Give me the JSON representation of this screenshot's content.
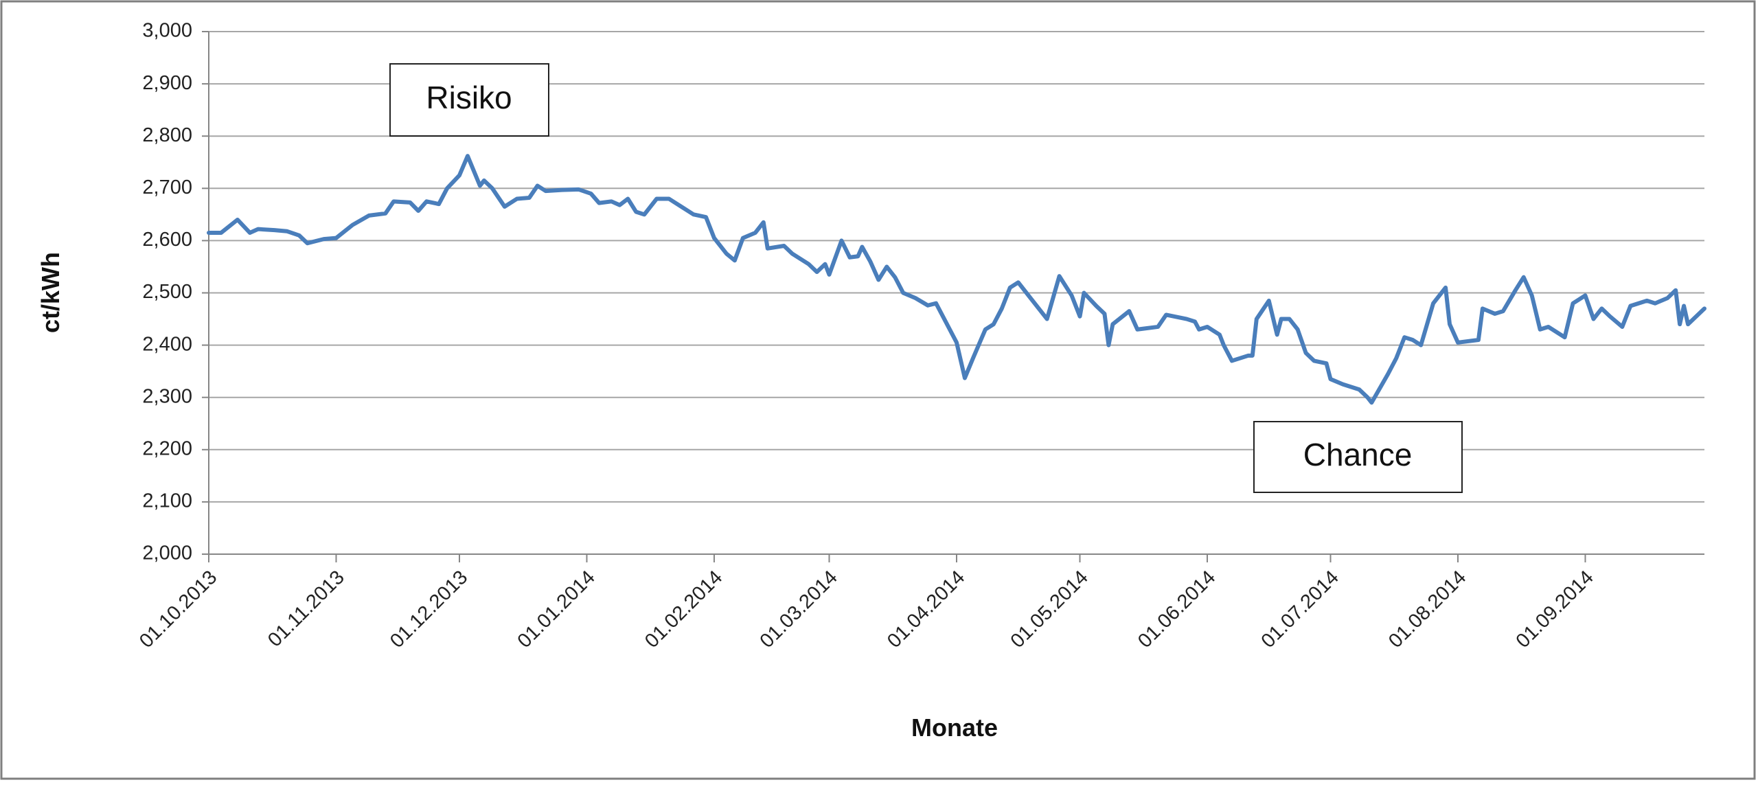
{
  "chart_data": {
    "type": "line",
    "ylabel": "ct/kWh",
    "xlabel": "Monate",
    "annotations": [
      "Risiko",
      "Chance"
    ],
    "color": "#4a7ebb",
    "grid": true,
    "ylim": [
      2000,
      3000
    ],
    "yticks": [
      {
        "value": 2000,
        "label": "2,000"
      },
      {
        "value": 2100,
        "label": "2,100"
      },
      {
        "value": 2200,
        "label": "2,200"
      },
      {
        "value": 2300,
        "label": "2,300"
      },
      {
        "value": 2400,
        "label": "2,400"
      },
      {
        "value": 2500,
        "label": "2,500"
      },
      {
        "value": 2600,
        "label": "2,600"
      },
      {
        "value": 2700,
        "label": "2,700"
      },
      {
        "value": 2800,
        "label": "2,800"
      },
      {
        "value": 2900,
        "label": "2,900"
      },
      {
        "value": 3000,
        "label": "3,000"
      }
    ],
    "xlim": [
      "01.10.2013",
      "30.09.2014"
    ],
    "xticks": [
      "01.10.2013",
      "01.11.2013",
      "01.12.2013",
      "01.01.2014",
      "01.02.2014",
      "01.03.2014",
      "01.04.2014",
      "01.05.2014",
      "01.06.2014",
      "01.07.2014",
      "01.08.2014",
      "01.09.2014"
    ],
    "x": [
      "01.10.2013",
      "04.10.2013",
      "08.10.2013",
      "11.10.2013",
      "13.10.2013",
      "17.10.2013",
      "20.10.2013",
      "23.10.2013",
      "25.10.2013",
      "29.10.2013",
      "01.11.2013",
      "05.11.2013",
      "09.11.2013",
      "13.11.2013",
      "15.11.2013",
      "19.11.2013",
      "21.11.2013",
      "23.11.2013",
      "26.11.2013",
      "28.11.2013",
      "01.12.2013",
      "03.12.2013",
      "06.12.2013",
      "07.12.2013",
      "09.12.2013",
      "12.12.2013",
      "15.12.2013",
      "18.12.2013",
      "20.12.2013",
      "22.12.2013",
      "26.12.2013",
      "30.12.2013",
      "02.01.2014",
      "04.01.2014",
      "07.01.2014",
      "09.01.2014",
      "11.01.2014",
      "13.01.2014",
      "15.01.2014",
      "18.01.2014",
      "21.01.2014",
      "24.01.2014",
      "27.01.2014",
      "30.01.2014",
      "01.02.2014",
      "04.02.2014",
      "06.02.2014",
      "08.02.2014",
      "11.02.2014",
      "13.02.2014",
      "14.02.2014",
      "18.02.2014",
      "20.02.2014",
      "24.02.2014",
      "26.02.2014",
      "28.02.2014",
      "01.03.2014",
      "04.03.2014",
      "06.03.2014",
      "08.03.2014",
      "09.03.2014",
      "11.03.2014",
      "13.03.2014",
      "15.03.2014",
      "17.03.2014",
      "19.03.2014",
      "22.03.2014",
      "25.03.2014",
      "27.03.2014",
      "31.03.2014",
      "01.04.2014",
      "03.04.2014",
      "05.04.2014",
      "08.04.2014",
      "10.04.2014",
      "12.04.2014",
      "14.04.2014",
      "16.04.2014",
      "19.04.2014",
      "23.04.2014",
      "26.04.2014",
      "29.04.2014",
      "01.05.2014",
      "02.05.2014",
      "05.05.2014",
      "07.05.2014",
      "08.05.2014",
      "09.05.2014",
      "13.05.2014",
      "15.05.2014",
      "20.05.2014",
      "22.05.2014",
      "27.05.2014",
      "29.05.2014",
      "30.05.2014",
      "01.06.2014",
      "04.06.2014",
      "05.06.2014",
      "07.06.2014",
      "11.06.2014",
      "12.06.2014",
      "13.06.2014",
      "16.06.2014",
      "18.06.2014",
      "19.06.2014",
      "21.06.2014",
      "23.06.2014",
      "25.06.2014",
      "27.06.2014",
      "30.06.2014",
      "01.07.2014",
      "04.07.2014",
      "08.07.2014",
      "10.07.2014",
      "11.07.2014",
      "15.07.2014",
      "17.07.2014",
      "19.07.2014",
      "21.07.2014",
      "23.07.2014",
      "26.07.2014",
      "29.07.2014",
      "30.07.2014",
      "01.08.2014",
      "06.08.2014",
      "07.08.2014",
      "10.08.2014",
      "12.08.2014",
      "15.08.2014",
      "17.08.2014",
      "19.08.2014",
      "21.08.2014",
      "23.08.2014",
      "27.08.2014",
      "29.08.2014",
      "01.09.2014",
      "03.09.2014",
      "05.09.2014",
      "07.09.2014",
      "10.09.2014",
      "12.09.2014",
      "16.09.2014",
      "18.09.2014",
      "21.09.2014",
      "23.09.2014",
      "24.09.2014",
      "25.09.2014",
      "26.09.2014",
      "30.09.2014"
    ],
    "values": [
      2615,
      2615,
      2640,
      2615,
      2622,
      2620,
      2618,
      2610,
      2595,
      2603,
      2605,
      2630,
      2648,
      2652,
      2675,
      2673,
      2657,
      2675,
      2670,
      2700,
      2725,
      2762,
      2705,
      2715,
      2700,
      2665,
      2680,
      2682,
      2705,
      2695,
      2697,
      2698,
      2690,
      2672,
      2675,
      2668,
      2680,
      2655,
      2650,
      2680,
      2680,
      2665,
      2650,
      2645,
      2605,
      2575,
      2562,
      2605,
      2615,
      2635,
      2585,
      2590,
      2575,
      2555,
      2540,
      2555,
      2535,
      2600,
      2568,
      2570,
      2588,
      2560,
      2525,
      2550,
      2530,
      2500,
      2490,
      2476,
      2480,
      2420,
      2405,
      2337,
      2375,
      2430,
      2440,
      2470,
      2510,
      2520,
      2490,
      2450,
      2532,
      2495,
      2455,
      2500,
      2475,
      2460,
      2400,
      2440,
      2465,
      2430,
      2435,
      2458,
      2450,
      2445,
      2430,
      2435,
      2420,
      2400,
      2370,
      2380,
      2380,
      2450,
      2485,
      2420,
      2450,
      2450,
      2430,
      2385,
      2370,
      2365,
      2335,
      2325,
      2315,
      2300,
      2290,
      2345,
      2375,
      2415,
      2410,
      2400,
      2480,
      2510,
      2440,
      2405,
      2410,
      2470,
      2460,
      2465,
      2505,
      2530,
      2495,
      2430,
      2435,
      2415,
      2480,
      2495,
      2450,
      2470,
      2455,
      2435,
      2475,
      2485,
      2480,
      2490,
      2505,
      2440,
      2475,
      2440,
      2470
    ]
  }
}
